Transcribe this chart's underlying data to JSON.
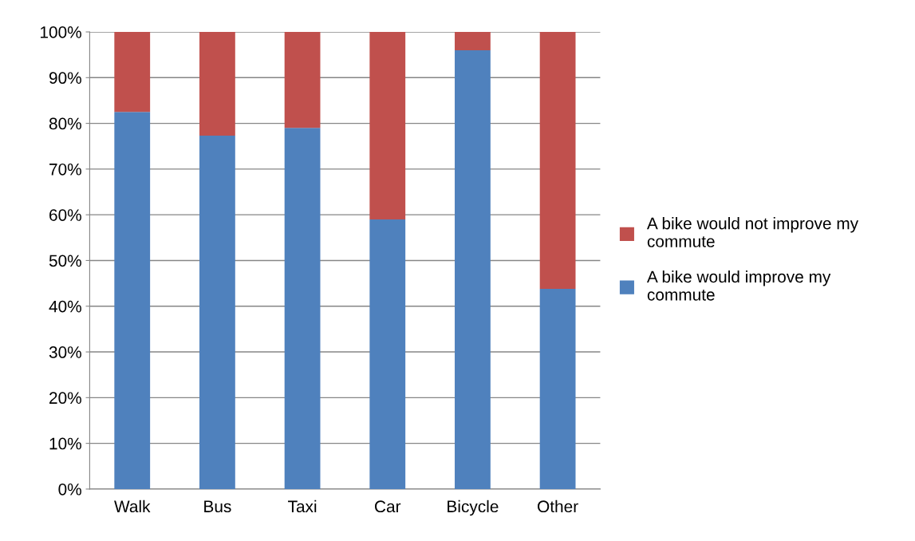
{
  "chart_data": {
    "type": "bar",
    "stacked": true,
    "categories": [
      "Walk",
      "Bus",
      "Taxi",
      "Car",
      "Bicycle",
      "Other"
    ],
    "series": [
      {
        "name": "A bike would improve my commute",
        "color": "#4f81bd",
        "values": [
          82.5,
          77.3,
          79,
          59,
          96,
          43.8
        ]
      },
      {
        "name": "A bike would not improve my commute",
        "color": "#c0504d",
        "values": [
          17.5,
          22.7,
          21,
          41,
          4,
          56.2
        ]
      }
    ],
    "ylim": [
      0,
      100
    ],
    "yticks": [
      {
        "value": 0,
        "label": "0%"
      },
      {
        "value": 10,
        "label": "10%"
      },
      {
        "value": 20,
        "label": "20%"
      },
      {
        "value": 30,
        "label": "30%"
      },
      {
        "value": 40,
        "label": "40%"
      },
      {
        "value": 50,
        "label": "50%"
      },
      {
        "value": 60,
        "label": "60%"
      },
      {
        "value": 70,
        "label": "70%"
      },
      {
        "value": 80,
        "label": "80%"
      },
      {
        "value": 90,
        "label": "90%"
      },
      {
        "value": 100,
        "label": "100%"
      }
    ],
    "grid": "y",
    "legend": "right"
  }
}
